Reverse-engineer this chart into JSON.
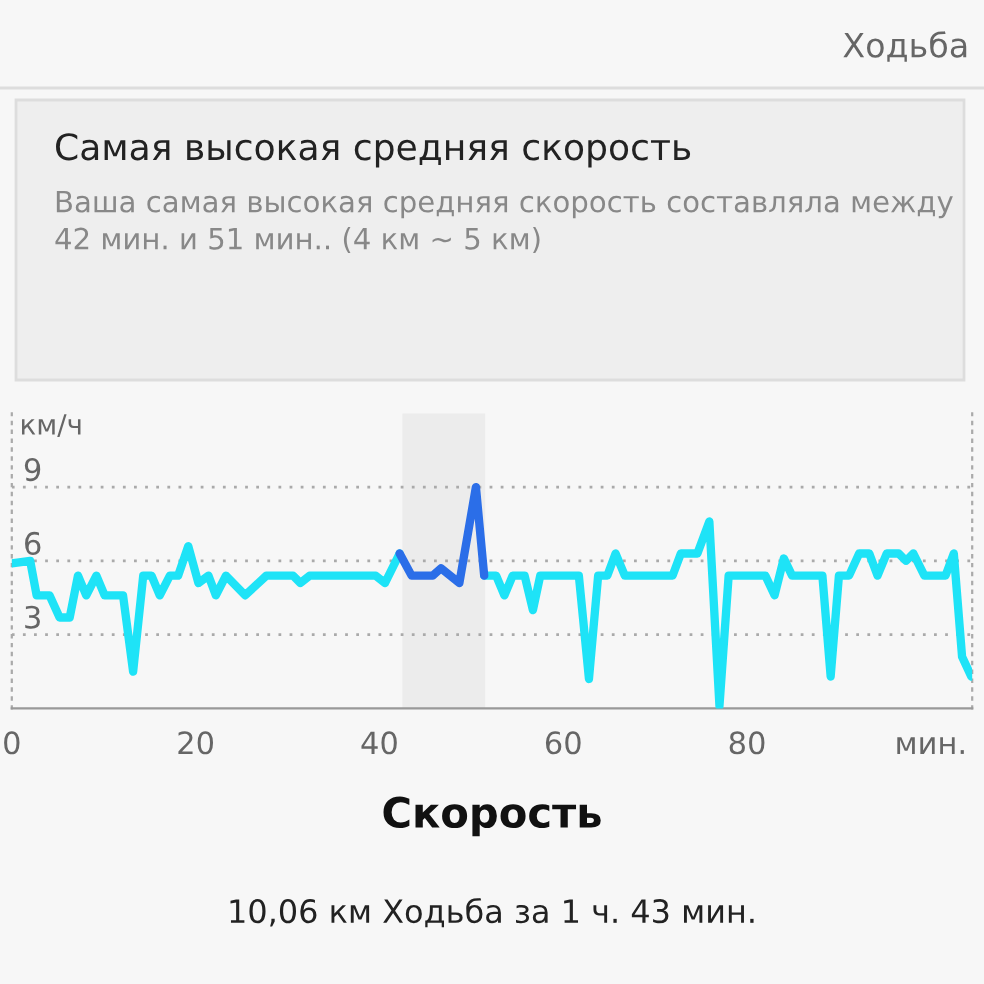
{
  "chart_data": {
    "type": "line",
    "title": "Скорость",
    "ylabel": "км/ч",
    "annotations": [
      "Ходьба",
      "Самая высокая средняя скорость",
      "Ваша самая высокая средняя скорость составляла между 42 мин. и 51 мин.. (4 км ~ 5 км)",
      "10,06 км Ходьба за 1 ч. 43 мин."
    ],
    "series": [
      {
        "color": "#1ee3f7",
        "x": [
          0,
          2,
          2.7,
          4.1,
          5.2,
          6.3,
          7.2,
          8.1,
          9.2,
          10.1,
          12.1,
          13.2,
          14.3,
          15.2,
          16.1,
          17.2,
          18.1,
          19.2,
          20.3,
          21.4,
          22.2,
          23.3,
          25.4,
          27.7,
          30.6,
          31.4,
          32.4,
          39.6,
          40.6,
          42.2,
          46,
          51.4,
          51.6,
          52.7,
          53.6,
          54.5,
          55.8,
          56.7,
          57.5,
          61.7,
          62.8,
          63.8,
          64.8,
          65.7,
          66.7,
          71.9,
          72.8,
          74.6,
          75.9,
          77.0,
          78.0,
          82.0,
          83.0,
          84.0,
          84.9,
          88.2,
          89.1,
          90.0,
          91.1,
          92.2,
          93.3,
          94.2,
          95.2,
          96.5,
          97.3,
          98.1,
          99.3,
          101.6,
          102.5,
          103.4,
          104.4
        ],
        "values": [
          5.9,
          6.0,
          4.6,
          4.6,
          3.7,
          3.7,
          5.4,
          4.6,
          5.4,
          4.6,
          4.6,
          1.5,
          5.4,
          5.4,
          4.6,
          5.4,
          5.4,
          6.6,
          5.1,
          5.4,
          4.6,
          5.4,
          4.6,
          5.4,
          5.4,
          5.1,
          5.4,
          5.4,
          5.1,
          6.3,
          null,
          5.4,
          5.4,
          5.4,
          4.6,
          5.4,
          5.4,
          4.0,
          5.4,
          5.4,
          1.2,
          5.4,
          5.4,
          6.3,
          5.4,
          5.4,
          6.3,
          6.3,
          7.6,
          0.1,
          5.4,
          5.4,
          4.6,
          6.1,
          5.4,
          5.4,
          1.3,
          5.4,
          5.4,
          6.3,
          6.3,
          5.4,
          6.3,
          6.3,
          6.0,
          6.3,
          5.4,
          5.4,
          6.3,
          2.1,
          1.3
        ]
      },
      {
        "color": "#2b6ee8",
        "x": [
          42.2,
          43.5,
          45.8,
          46.7,
          48.7,
          50.5,
          51.4
        ],
        "values": [
          6.3,
          5.4,
          5.4,
          5.7,
          5.1,
          9.0,
          5.4
        ]
      }
    ],
    "bands": [
      {
        "axis": "x",
        "from": 42.5,
        "to": 51.5,
        "color": "#ececec"
      }
    ],
    "xlim": [
      0,
      104.5
    ],
    "xticks": [
      0,
      20,
      40,
      60,
      80,
      {
        "value": 100,
        "label": "мин."
      }
    ],
    "ylim": [
      0,
      12
    ],
    "yticks": [
      3,
      6,
      9
    ],
    "grid": "y",
    "marker": "none",
    "line_style": "solid"
  }
}
